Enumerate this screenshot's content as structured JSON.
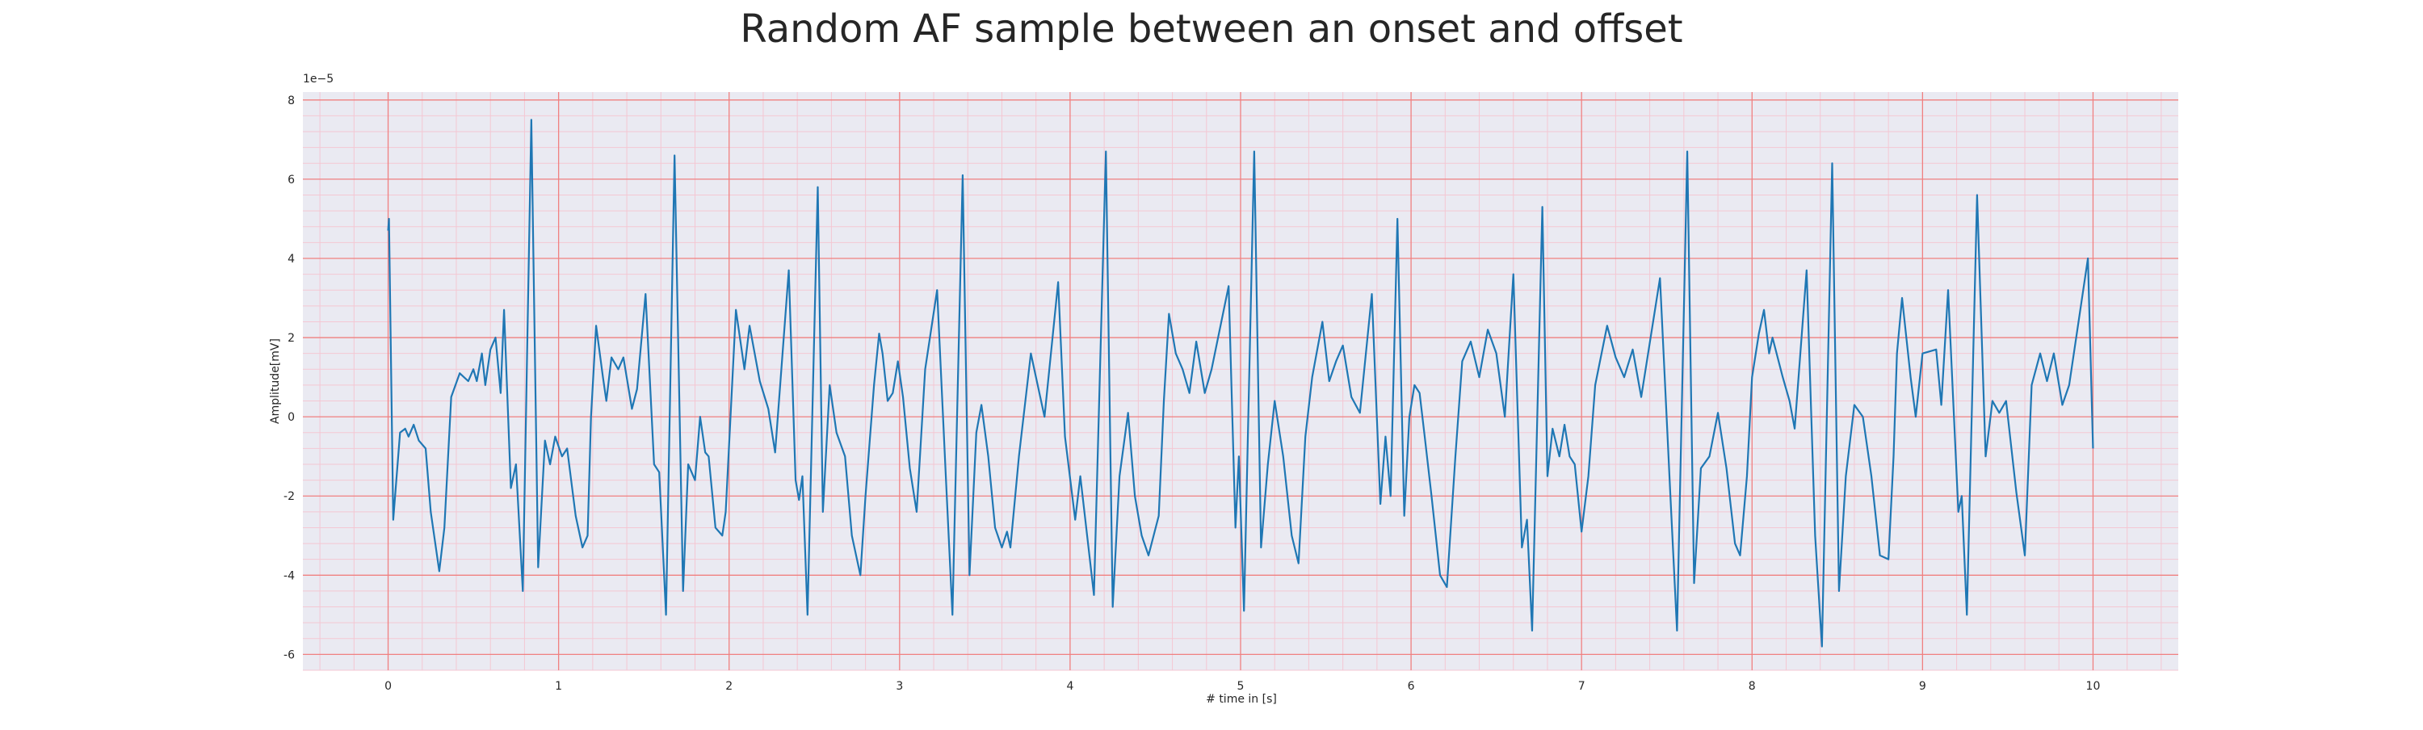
{
  "chart_data": {
    "type": "line",
    "title": "Random AF sample between an onset and offset",
    "xlabel": "# time in [s]",
    "ylabel": "Amplitude[mV]",
    "y_offset_label": "1e−5",
    "color": "#1f77b4",
    "background": "#eaeaf2",
    "grid": true,
    "grid_color": "#f08080",
    "minor_grid": true,
    "minor_grid_color": "#f4c7d3",
    "xlim": [
      -0.5,
      10.5
    ],
    "xticks": [
      0,
      1,
      2,
      3,
      4,
      5,
      6,
      7,
      8,
      9,
      10
    ],
    "ylim": [
      -6.4,
      8.2
    ],
    "yticks": [
      -6,
      -4,
      -2,
      0,
      2,
      4,
      6,
      8
    ],
    "x": [
      0,
      0.005,
      0.03,
      0.07,
      0.1,
      0.12,
      0.15,
      0.18,
      0.22,
      0.25,
      0.3,
      0.33,
      0.37,
      0.42,
      0.47,
      0.5,
      0.52,
      0.55,
      0.57,
      0.6,
      0.63,
      0.66,
      0.68,
      0.72,
      0.75,
      0.79,
      0.84,
      0.88,
      0.92,
      0.95,
      0.98,
      1.02,
      1.05,
      1.1,
      1.14,
      1.17,
      1.19,
      1.22,
      1.26,
      1.28,
      1.31,
      1.35,
      1.38,
      1.43,
      1.46,
      1.51,
      1.56,
      1.59,
      1.63,
      1.68,
      1.73,
      1.76,
      1.8,
      1.83,
      1.86,
      1.88,
      1.92,
      1.96,
      1.98,
      2.04,
      2.09,
      2.12,
      2.18,
      2.23,
      2.27,
      2.35,
      2.39,
      2.41,
      2.43,
      2.46,
      2.52,
      2.55,
      2.59,
      2.63,
      2.68,
      2.72,
      2.77,
      2.8,
      2.85,
      2.88,
      2.9,
      2.93,
      2.96,
      2.99,
      3.02,
      3.06,
      3.1,
      3.15,
      3.22,
      3.27,
      3.31,
      3.37,
      3.41,
      3.45,
      3.48,
      3.52,
      3.56,
      3.6,
      3.63,
      3.65,
      3.7,
      3.77,
      3.8,
      3.85,
      3.93,
      3.97,
      4.03,
      4.06,
      4.14,
      4.21,
      4.25,
      4.29,
      4.34,
      4.38,
      4.42,
      4.46,
      4.52,
      4.55,
      4.58,
      4.62,
      4.66,
      4.7,
      4.74,
      4.79,
      4.83,
      4.93,
      4.97,
      4.99,
      5.02,
      5.08,
      5.12,
      5.16,
      5.2,
      5.25,
      5.3,
      5.34,
      5.38,
      5.42,
      5.48,
      5.52,
      5.56,
      5.6,
      5.65,
      5.7,
      5.77,
      5.82,
      5.85,
      5.88,
      5.92,
      5.96,
      5.99,
      6.02,
      6.05,
      6.08,
      6.12,
      6.17,
      6.21,
      6.26,
      6.3,
      6.35,
      6.4,
      6.45,
      6.5,
      6.55,
      6.6,
      6.65,
      6.68,
      6.71,
      6.77,
      6.8,
      6.83,
      6.87,
      6.9,
      6.93,
      6.96,
      7.0,
      7.04,
      7.08,
      7.15,
      7.2,
      7.25,
      7.3,
      7.35,
      7.46,
      7.52,
      7.56,
      7.62,
      7.66,
      7.7,
      7.75,
      7.8,
      7.85,
      7.9,
      7.93,
      7.97,
      8.0,
      8.04,
      8.07,
      8.1,
      8.12,
      8.18,
      8.22,
      8.25,
      8.32,
      8.37,
      8.41,
      8.47,
      8.51,
      8.55,
      8.6,
      8.65,
      8.7,
      8.75,
      8.8,
      8.83,
      8.85,
      8.88,
      8.93,
      8.96,
      9.0,
      9.08,
      9.11,
      9.15,
      9.21,
      9.23,
      9.26,
      9.32,
      9.37,
      9.41,
      9.45,
      9.49,
      9.55,
      9.6,
      9.64,
      9.69,
      9.73,
      9.77,
      9.82,
      9.86,
      9.97,
      10.0
    ],
    "values": [
      4.7,
      5.0,
      -2.6,
      -0.4,
      -0.3,
      -0.5,
      -0.2,
      -0.6,
      -0.8,
      -2.4,
      -3.9,
      -2.8,
      0.5,
      1.1,
      0.9,
      1.2,
      0.9,
      1.6,
      0.8,
      1.7,
      2.0,
      0.6,
      2.7,
      -1.8,
      -1.2,
      -4.4,
      7.5,
      -3.8,
      -0.6,
      -1.2,
      -0.5,
      -1.0,
      -0.8,
      -2.5,
      -3.3,
      -3.0,
      0.0,
      2.3,
      1.0,
      0.4,
      1.5,
      1.2,
      1.5,
      0.2,
      0.7,
      3.1,
      -1.2,
      -1.4,
      -5.0,
      6.6,
      -4.4,
      -1.2,
      -1.6,
      0.0,
      -0.9,
      -1.0,
      -2.8,
      -3.0,
      -2.4,
      2.7,
      1.2,
      2.3,
      0.9,
      0.2,
      -0.9,
      3.7,
      -1.6,
      -2.1,
      -1.5,
      -5.0,
      5.8,
      -2.4,
      0.8,
      -0.4,
      -1.0,
      -3.0,
      -4.0,
      -2.0,
      0.8,
      2.1,
      1.6,
      0.4,
      0.6,
      1.4,
      0.5,
      -1.3,
      -2.4,
      1.2,
      3.2,
      -1.4,
      -5.0,
      6.1,
      -4.0,
      -0.4,
      0.3,
      -1.0,
      -2.8,
      -3.3,
      -2.9,
      -3.3,
      -1.0,
      1.6,
      1.0,
      0.0,
      3.4,
      -0.5,
      -2.6,
      -1.5,
      -4.5,
      6.7,
      -4.8,
      -1.5,
      0.1,
      -2.0,
      -3.0,
      -3.5,
      -2.5,
      0.4,
      2.6,
      1.6,
      1.2,
      0.6,
      1.9,
      0.6,
      1.2,
      3.3,
      -2.8,
      -1.0,
      -4.9,
      6.7,
      -3.3,
      -1.2,
      0.4,
      -1.0,
      -3.0,
      -3.7,
      -0.5,
      1.0,
      2.4,
      0.9,
      1.4,
      1.8,
      0.5,
      0.1,
      3.1,
      -2.2,
      -0.5,
      -2.0,
      5.0,
      -2.5,
      0.0,
      0.8,
      0.6,
      -0.5,
      -2.0,
      -4.0,
      -4.3,
      -1.0,
      1.4,
      1.9,
      1.0,
      2.2,
      1.6,
      0.0,
      3.6,
      -3.3,
      -2.6,
      -5.4,
      5.3,
      -1.5,
      -0.3,
      -1.0,
      -0.2,
      -1.0,
      -1.2,
      -2.9,
      -1.5,
      0.8,
      2.3,
      1.5,
      1.0,
      1.7,
      0.5,
      3.5,
      -1.9,
      -5.4,
      6.7,
      -4.2,
      -1.3,
      -1.0,
      0.1,
      -1.3,
      -3.2,
      -3.5,
      -1.5,
      1.0,
      2.1,
      2.7,
      1.6,
      2.0,
      1.0,
      0.4,
      -0.3,
      3.7,
      -3.0,
      -5.8,
      6.4,
      -4.4,
      -1.5,
      0.3,
      0.0,
      -1.5,
      -3.5,
      -3.6,
      -1.0,
      1.6,
      3.0,
      1.0,
      0.0,
      1.6,
      1.7,
      0.3,
      3.2,
      -2.4,
      -2.0,
      -5.0,
      5.6,
      -1.0,
      0.4,
      0.1,
      0.4,
      -1.9,
      -3.5,
      0.8,
      1.6,
      0.9,
      1.6,
      0.3,
      0.8,
      4.0,
      -0.8
    ]
  }
}
